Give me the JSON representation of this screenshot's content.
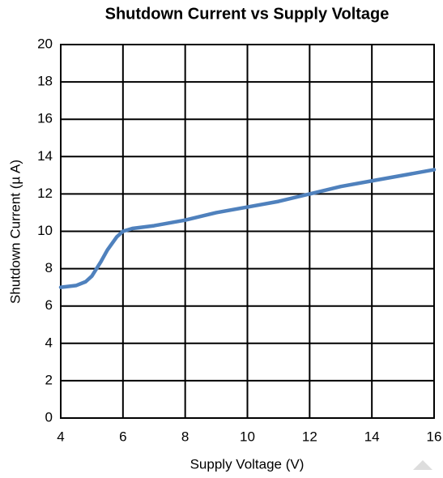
{
  "chart_data": {
    "type": "line",
    "title": "Shutdown Current vs Supply Voltage",
    "x_label": "Supply Voltage (V)",
    "y_label": "Shutdown Current (µ A)",
    "x": [
      4,
      4.5,
      4.8,
      5,
      5.3,
      5.5,
      5.8,
      6,
      6.3,
      7,
      8,
      9,
      10,
      11,
      12,
      13,
      14,
      15,
      16
    ],
    "series": [
      {
        "name": "Shutdown Current",
        "color": "#4f81bd",
        "values": [
          7.0,
          7.1,
          7.3,
          7.6,
          8.4,
          9.0,
          9.7,
          10.0,
          10.15,
          10.3,
          10.6,
          11.0,
          11.3,
          11.6,
          12.0,
          12.4,
          12.7,
          13.0,
          13.3
        ]
      }
    ],
    "xlim": [
      4,
      16
    ],
    "xticks": [
      4,
      6,
      8,
      10,
      12,
      14,
      16
    ],
    "ylim": [
      0,
      20
    ],
    "yticks": [
      0,
      2,
      4,
      6,
      8,
      10,
      12,
      14,
      16,
      18,
      20
    ],
    "grid": true
  }
}
